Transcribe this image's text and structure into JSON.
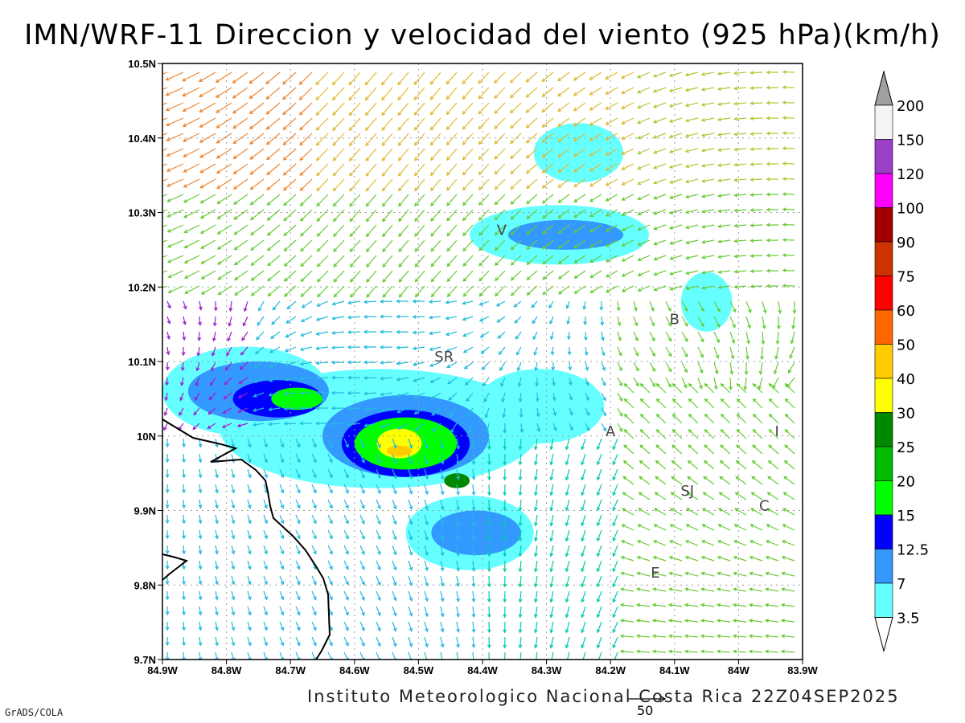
{
  "title": "IMN/WRF-11 Direccion y velocidad del viento (925 hPa)(km/h)",
  "footer": "Instituto Meteorologico Nacional Costa Rica 22Z04SEP2025",
  "software": "GrADS/COLA",
  "reference_vector": {
    "label": "50",
    "value": 50
  },
  "axes": {
    "lon_ticks": [
      "84.9W",
      "84.8W",
      "84.7W",
      "84.6W",
      "84.5W",
      "84.4W",
      "84.3W",
      "84.2W",
      "84.1W",
      "84W",
      "83.9W"
    ],
    "lat_ticks": [
      "10.5N",
      "10.4N",
      "10.3N",
      "10.2N",
      "10.1N",
      "10N",
      "9.9N",
      "9.8N",
      "9.7N"
    ],
    "lon_range": [
      -84.9,
      -83.9
    ],
    "lat_range": [
      9.7,
      10.5
    ],
    "grid": true
  },
  "colorbar": {
    "levels": [
      "200",
      "150",
      "120",
      "100",
      "90",
      "75",
      "60",
      "50",
      "40",
      "30",
      "25",
      "20",
      "15",
      "12.5",
      "7",
      "3.5"
    ],
    "colors": [
      "#a0a0a0",
      "#f4f4f4",
      "#9b3fc8",
      "#ff00ff",
      "#a00000",
      "#cc3300",
      "#ff0000",
      "#ff6600",
      "#ffcc00",
      "#ffff00",
      "#008800",
      "#00bb00",
      "#00ff00",
      "#0000ff",
      "#3399ff",
      "#66ffff"
    ]
  },
  "stations": [
    {
      "label": "V",
      "lon": -84.37,
      "lat": 10.27
    },
    {
      "label": "B",
      "lon": -84.1,
      "lat": 10.15
    },
    {
      "label": "SR",
      "lon": -84.46,
      "lat": 10.1
    },
    {
      "label": "A",
      "lon": -84.2,
      "lat": 10.0
    },
    {
      "label": "I",
      "lon": -83.94,
      "lat": 10.0
    },
    {
      "label": "SJ",
      "lon": -84.08,
      "lat": 9.92
    },
    {
      "label": "C",
      "lon": -83.96,
      "lat": 9.9
    },
    {
      "label": "E",
      "lon": -84.13,
      "lat": 9.81
    }
  ],
  "speed_contours": [
    {
      "level": "3.5",
      "color": "#66ffff",
      "center": [
        -84.56,
        10.01
      ],
      "rx": 0.25,
      "ry": 0.08
    },
    {
      "level": "3.5",
      "color": "#66ffff",
      "center": [
        -84.77,
        10.06
      ],
      "rx": 0.13,
      "ry": 0.06
    },
    {
      "level": "3.5",
      "color": "#66ffff",
      "center": [
        -84.42,
        9.87
      ],
      "rx": 0.1,
      "ry": 0.05
    },
    {
      "level": "3.5",
      "color": "#66ffff",
      "center": [
        -84.31,
        10.04
      ],
      "rx": 0.1,
      "ry": 0.05
    },
    {
      "level": "3.5",
      "color": "#66ffff",
      "center": [
        -84.28,
        10.27
      ],
      "rx": 0.14,
      "ry": 0.04
    },
    {
      "level": "3.5",
      "color": "#66ffff",
      "center": [
        -84.25,
        10.38
      ],
      "rx": 0.07,
      "ry": 0.04
    },
    {
      "level": "3.5",
      "color": "#66ffff",
      "center": [
        -84.05,
        10.18
      ],
      "rx": 0.04,
      "ry": 0.04
    },
    {
      "level": "7",
      "color": "#3399ff",
      "center": [
        -84.75,
        10.06
      ],
      "rx": 0.11,
      "ry": 0.04
    },
    {
      "level": "7",
      "color": "#3399ff",
      "center": [
        -84.52,
        10.0
      ],
      "rx": 0.13,
      "ry": 0.055
    },
    {
      "level": "7",
      "color": "#3399ff",
      "center": [
        -84.41,
        9.87
      ],
      "rx": 0.07,
      "ry": 0.03
    },
    {
      "level": "7",
      "color": "#3399ff",
      "center": [
        -84.27,
        10.27
      ],
      "rx": 0.09,
      "ry": 0.02
    },
    {
      "level": "12.5",
      "color": "#0000ff",
      "center": [
        -84.52,
        9.99
      ],
      "rx": 0.1,
      "ry": 0.045
    },
    {
      "level": "12.5",
      "color": "#0000ff",
      "center": [
        -84.72,
        10.05
      ],
      "rx": 0.07,
      "ry": 0.025
    },
    {
      "level": "15",
      "color": "#00ff00",
      "center": [
        -84.52,
        9.99
      ],
      "rx": 0.08,
      "ry": 0.035
    },
    {
      "level": "15",
      "color": "#00ff00",
      "center": [
        -84.69,
        10.05
      ],
      "rx": 0.04,
      "ry": 0.015
    },
    {
      "level": "25",
      "color": "#008800",
      "center": [
        -84.44,
        9.94
      ],
      "rx": 0.02,
      "ry": 0.01
    },
    {
      "level": "30",
      "color": "#ffff00",
      "center": [
        -84.53,
        9.99
      ],
      "rx": 0.035,
      "ry": 0.02
    },
    {
      "level": "40",
      "color": "#ffcc00",
      "center": [
        -84.53,
        9.98
      ],
      "rx": 0.02,
      "ry": 0.007
    }
  ]
}
